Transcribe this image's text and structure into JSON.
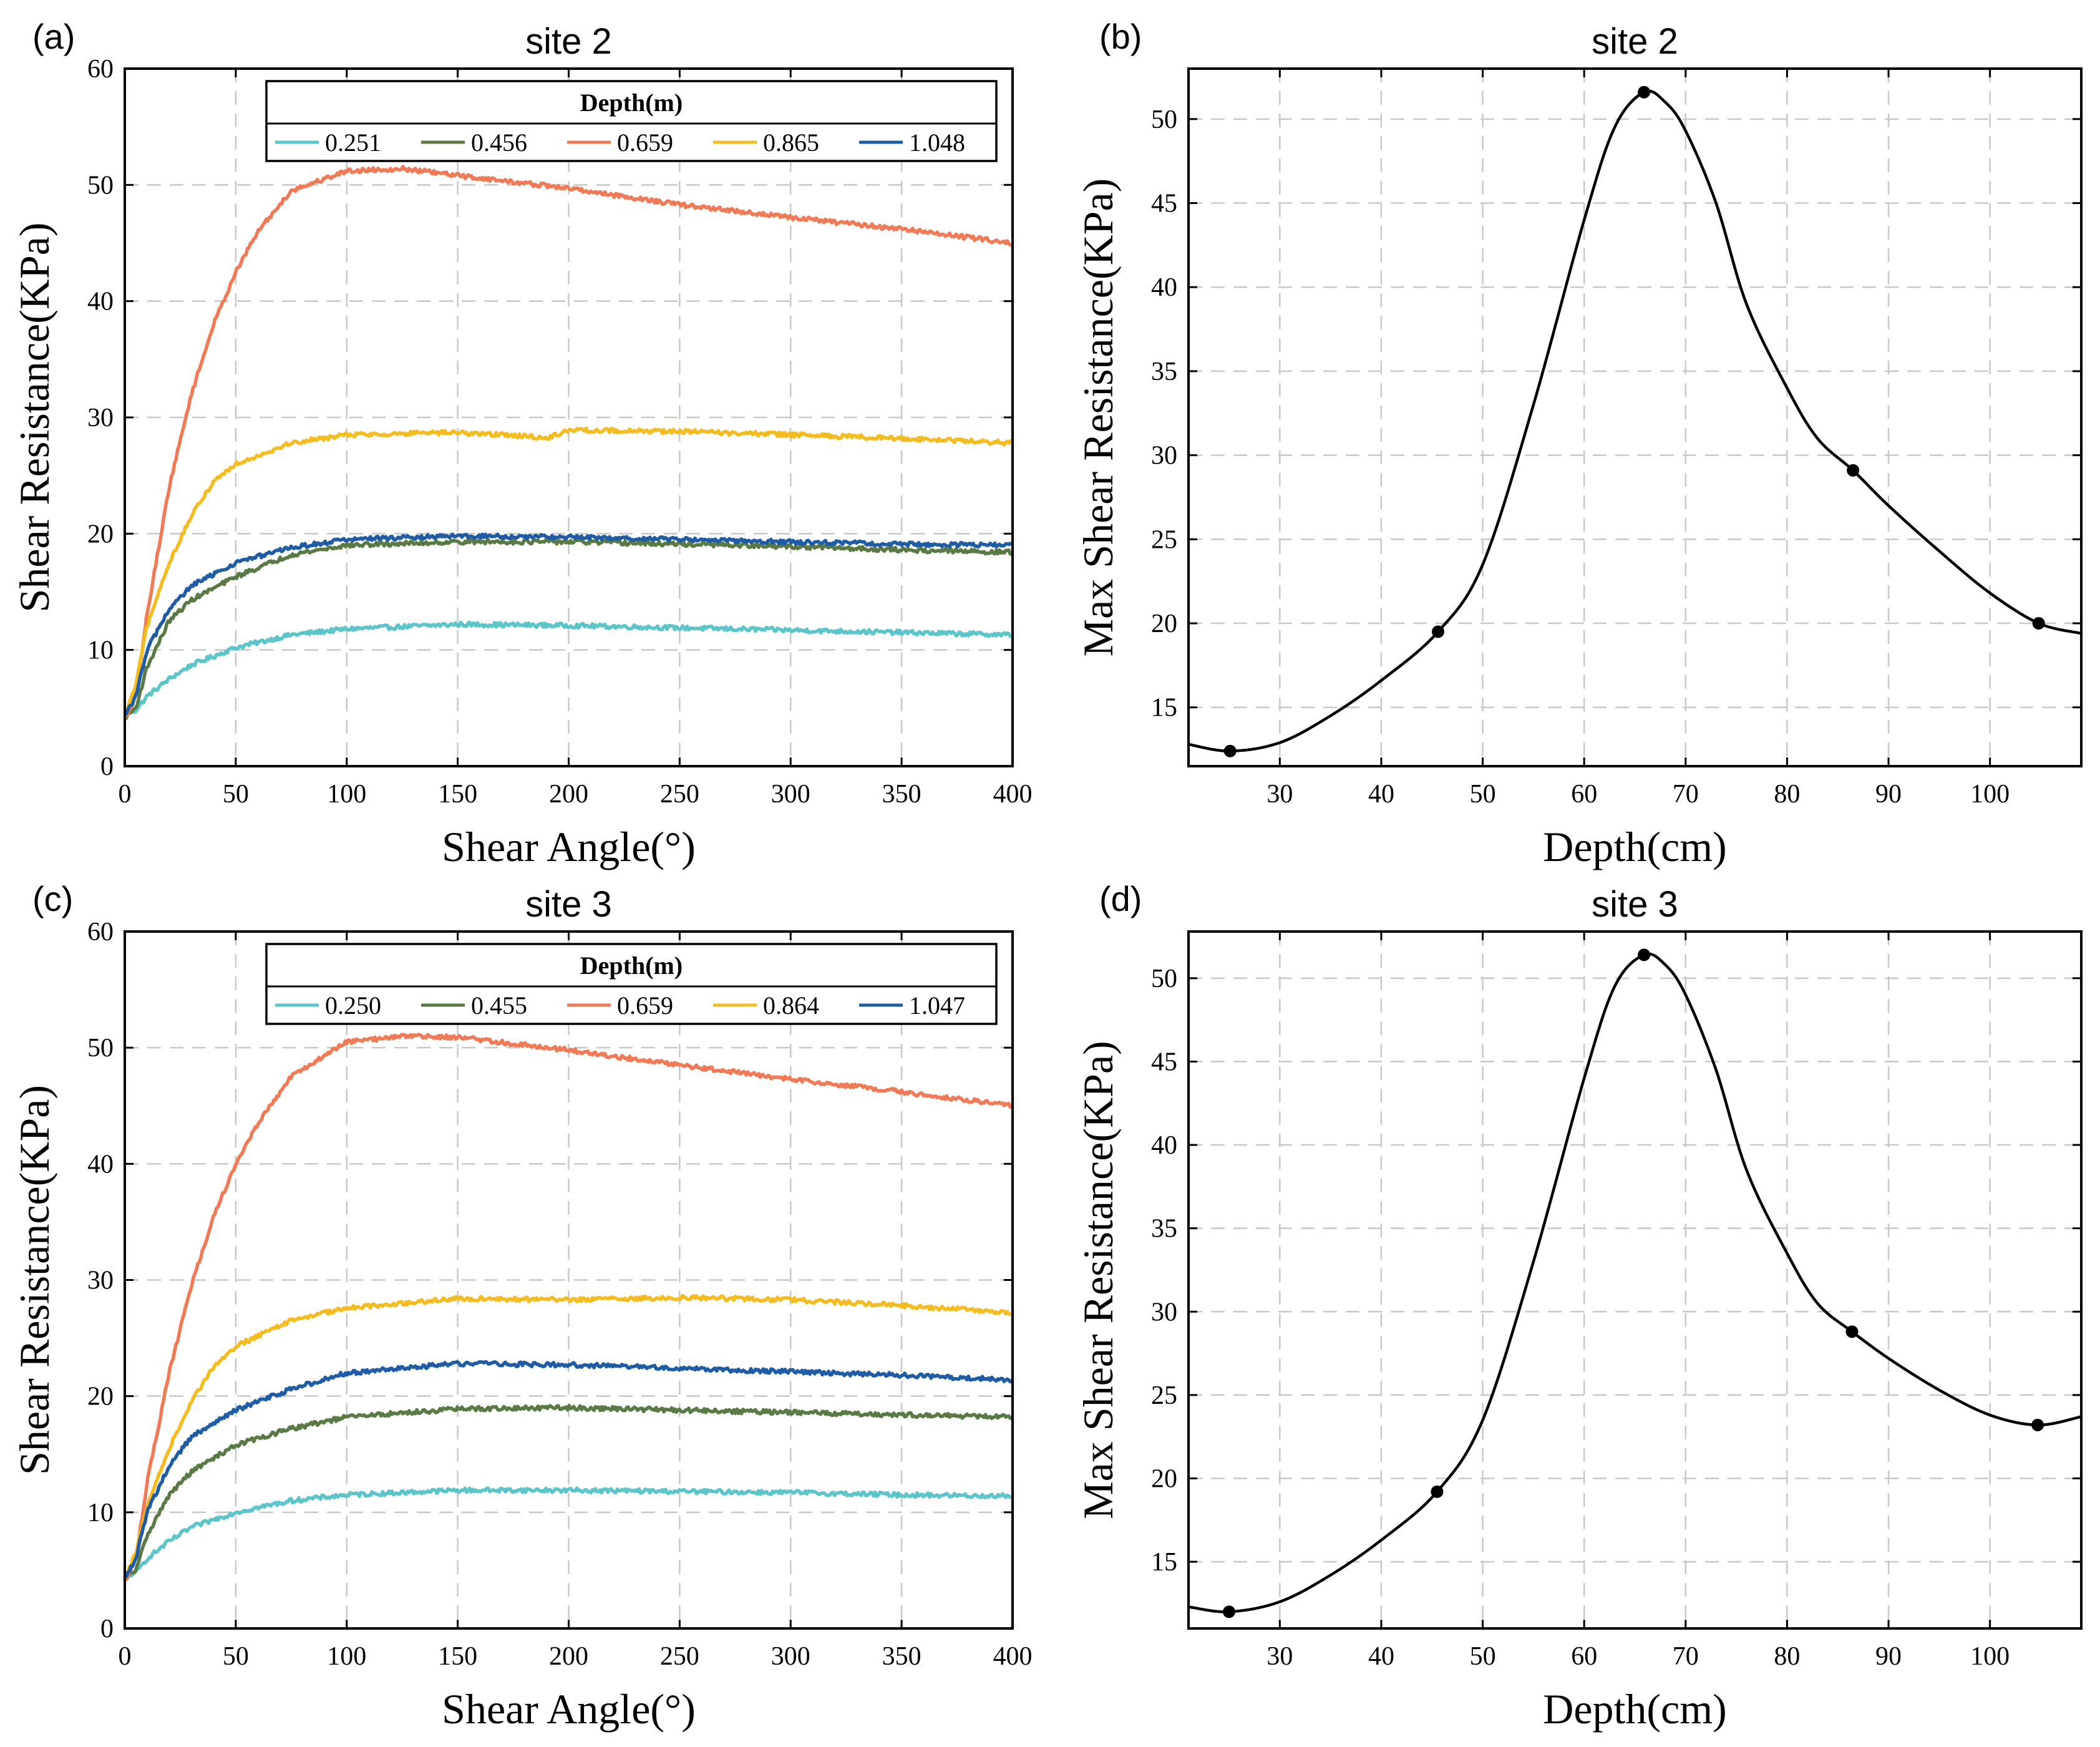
{
  "chart_data": [
    {
      "panel_label": "(a)",
      "type": "line",
      "title": "site 2",
      "xlabel": "Shear Angle(°)",
      "ylabel": "Shear Resistance(KPa)",
      "xlim": [
        0,
        400
      ],
      "ylim": [
        0,
        60
      ],
      "xticks": [
        0,
        50,
        100,
        150,
        200,
        250,
        300,
        350,
        400
      ],
      "yticks": [
        0,
        10,
        20,
        30,
        40,
        50,
        60
      ],
      "grid": true,
      "legend_title": "Depth(m)",
      "legend_position": "top-right",
      "series": [
        {
          "name": "0.251",
          "color": "#5BC5C9",
          "x": [
            0,
            5,
            10,
            20,
            30,
            50,
            75,
            100,
            150,
            200,
            250,
            300,
            350,
            400
          ],
          "y": [
            4.5,
            4.8,
            6,
            7.5,
            8.7,
            10.2,
            11.3,
            11.8,
            12.2,
            12.1,
            11.9,
            11.7,
            11.5,
            11.3
          ]
        },
        {
          "name": "0.456",
          "color": "#5A7A45",
          "x": [
            0,
            5,
            10,
            20,
            30,
            50,
            75,
            100,
            150,
            200,
            250,
            300,
            350,
            400
          ],
          "y": [
            4.2,
            5,
            8.5,
            12.5,
            14.3,
            16.3,
            18.2,
            19,
            19.3,
            19.3,
            19.1,
            18.9,
            18.6,
            18.4
          ]
        },
        {
          "name": "0.659",
          "color": "#F07A55",
          "x": [
            0,
            5,
            10,
            20,
            30,
            40,
            50,
            60,
            75,
            100,
            125,
            150,
            200,
            250,
            300,
            350,
            400
          ],
          "y": [
            4,
            6,
            13,
            24,
            32,
            38,
            42.5,
            46,
            49.5,
            51.2,
            51.4,
            50.8,
            49.7,
            48.3,
            47.2,
            46.2,
            45
          ]
        },
        {
          "name": "0.865",
          "color": "#F5BC22",
          "x": [
            0,
            5,
            10,
            20,
            30,
            40,
            50,
            75,
            100,
            150,
            180,
            190,
            200,
            250,
            300,
            350,
            400
          ],
          "y": [
            4.2,
            7,
            12,
            17.5,
            21.5,
            24.5,
            26,
            27.8,
            28.5,
            28.7,
            28.4,
            28.2,
            28.9,
            28.8,
            28.5,
            28.2,
            27.8
          ]
        },
        {
          "name": "1.048",
          "color": "#1E5CA6",
          "x": [
            0,
            5,
            10,
            20,
            30,
            50,
            75,
            100,
            150,
            200,
            250,
            300,
            350,
            400
          ],
          "y": [
            4.3,
            6,
            10,
            13.5,
            15.5,
            17.5,
            18.8,
            19.5,
            19.8,
            19.7,
            19.5,
            19.3,
            19.1,
            19
          ]
        }
      ]
    },
    {
      "panel_label": "(b)",
      "type": "line",
      "title": "site 2",
      "xlabel": "Depth(cm)",
      "ylabel": "Max Shear Resistance(KPa)",
      "xlim": [
        21,
        109
      ],
      "ylim": [
        11.5,
        53
      ],
      "xticks": [
        30,
        40,
        50,
        60,
        70,
        80,
        90,
        100
      ],
      "yticks": [
        15,
        20,
        25,
        30,
        35,
        40,
        45,
        50
      ],
      "grid": true,
      "points_x": [
        25.1,
        45.6,
        65.9,
        86.5,
        104.8
      ],
      "points_y": [
        12.4,
        19.5,
        51.6,
        29.1,
        20.0
      ],
      "curve_x": [
        21,
        25.1,
        30,
        35,
        40,
        45.6,
        50,
        55,
        60,
        63,
        65.9,
        68,
        70,
        73,
        76,
        80,
        83,
        86.5,
        90,
        95,
        100,
        104.8,
        109
      ],
      "curve_y": [
        12.8,
        12.4,
        12.9,
        14.5,
        16.6,
        19.5,
        23.5,
        33,
        44,
        49.5,
        51.6,
        51,
        49.3,
        45,
        39,
        34,
        31,
        29.1,
        27,
        24.3,
        21.8,
        20.0,
        19.4
      ]
    },
    {
      "panel_label": "(c)",
      "type": "line",
      "title": "site 3",
      "xlabel": "Shear Angle(°)",
      "ylabel": "Shear Resistance(KPa)",
      "xlim": [
        0,
        400
      ],
      "ylim": [
        0,
        60
      ],
      "xticks": [
        0,
        50,
        100,
        150,
        200,
        250,
        300,
        350,
        400
      ],
      "yticks": [
        0,
        10,
        20,
        30,
        40,
        50,
        60
      ],
      "grid": true,
      "legend_title": "Depth(m)",
      "legend_position": "top-right",
      "series": [
        {
          "name": "0.250",
          "color": "#5BC5C9",
          "x": [
            0,
            5,
            10,
            20,
            30,
            50,
            75,
            100,
            150,
            200,
            250,
            300,
            350,
            400
          ],
          "y": [
            4.5,
            4.8,
            6,
            7.5,
            8.7,
            10,
            11,
            11.5,
            11.9,
            11.9,
            11.8,
            11.7,
            11.5,
            11.4
          ]
        },
        {
          "name": "0.455",
          "color": "#5A7A45",
          "x": [
            0,
            5,
            10,
            20,
            30,
            50,
            75,
            100,
            150,
            200,
            250,
            300,
            350,
            400
          ],
          "y": [
            4.3,
            5,
            8,
            11.5,
            13.5,
            15.8,
            17.2,
            18.2,
            18.9,
            19,
            18.8,
            18.6,
            18.4,
            18.2
          ]
        },
        {
          "name": "0.659",
          "color": "#F07A55",
          "x": [
            0,
            5,
            10,
            20,
            30,
            40,
            50,
            60,
            75,
            100,
            125,
            150,
            200,
            250,
            300,
            350,
            400
          ],
          "y": [
            4,
            6,
            12.5,
            22,
            29.5,
            35.5,
            40,
            43.5,
            47.5,
            50.5,
            51,
            50.9,
            49.8,
            48.5,
            47.3,
            46.2,
            45
          ]
        },
        {
          "name": "0.864",
          "color": "#F5BC22",
          "x": [
            0,
            5,
            10,
            20,
            30,
            40,
            50,
            75,
            100,
            150,
            200,
            250,
            300,
            350,
            400
          ],
          "y": [
            4.2,
            6.5,
            10.5,
            15.5,
            19.5,
            22.5,
            24.3,
            26.5,
            27.6,
            28.4,
            28.3,
            28.5,
            28.3,
            27.8,
            27.2
          ]
        },
        {
          "name": "1.047",
          "color": "#1E5CA6",
          "x": [
            0,
            5,
            10,
            20,
            30,
            50,
            75,
            100,
            150,
            200,
            250,
            300,
            350,
            400
          ],
          "y": [
            4.4,
            6,
            10,
            14,
            16.5,
            18.8,
            20.6,
            22,
            22.8,
            22.7,
            22.4,
            22.1,
            21.8,
            21.4
          ]
        }
      ]
    },
    {
      "panel_label": "(d)",
      "type": "line",
      "title": "site 3",
      "xlabel": "Depth(cm)",
      "ylabel": "Max Shear Resistance(KPa)",
      "xlim": [
        21,
        109
      ],
      "ylim": [
        11,
        52.8
      ],
      "xticks": [
        30,
        40,
        50,
        60,
        70,
        80,
        90,
        100
      ],
      "yticks": [
        15,
        20,
        25,
        30,
        35,
        40,
        45,
        50
      ],
      "grid": true,
      "points_x": [
        25.0,
        45.5,
        65.9,
        86.4,
        104.7
      ],
      "points_y": [
        12.0,
        19.2,
        51.4,
        28.8,
        23.2
      ],
      "curve_x": [
        21,
        25,
        30,
        35,
        40,
        45.5,
        50,
        55,
        60,
        63,
        65.9,
        68,
        70,
        73,
        76,
        80,
        83,
        86.4,
        90,
        95,
        100,
        104.7,
        109
      ],
      "curve_y": [
        12.3,
        12.0,
        12.6,
        14.2,
        16.3,
        19.2,
        23.5,
        33,
        44,
        49.5,
        51.4,
        50.8,
        49,
        44.5,
        38.5,
        33.5,
        30.5,
        28.8,
        27.2,
        25.3,
        23.8,
        23.2,
        23.7
      ]
    }
  ]
}
